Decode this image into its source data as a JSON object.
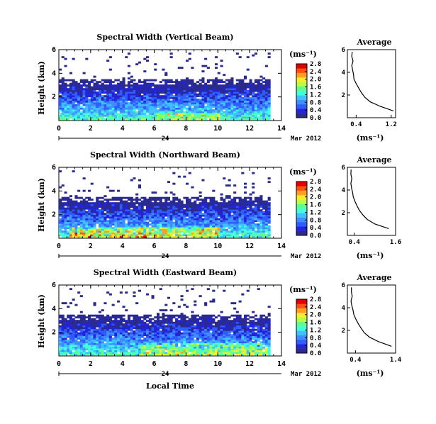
{
  "figure": {
    "local_time_label": "Local Time"
  },
  "colors": {
    "scale": [
      "#2b2b8c",
      "#2323d8",
      "#2f5cff",
      "#3f8dff",
      "#40c0ff",
      "#40ffe0",
      "#60ff8c",
      "#b8ff40",
      "#ffe830",
      "#ffa020",
      "#ff5010",
      "#e00000"
    ]
  },
  "chart_data": [
    {
      "type": "heatmap",
      "title": "Spectral Width (Vertical Beam)",
      "ylabel": "Height (km)",
      "xlim": [
        0,
        14
      ],
      "ylim": [
        0,
        6
      ],
      "xticks": [
        "0",
        "2",
        "4",
        "6",
        "8",
        "10",
        "12",
        "14"
      ],
      "yticks": [
        "2",
        "4",
        "6"
      ],
      "date_day": "24",
      "date_month": "Mar 2012",
      "colorbar": {
        "unit": "(ms⁻¹)",
        "ticks": [
          "0.0",
          "0.4",
          "0.8",
          "1.2",
          "1.6",
          "2.0",
          "2.4",
          "2.8"
        ]
      },
      "average": {
        "title": "Average",
        "xlabel": "(ms⁻¹)",
        "xlim": [
          0.2,
          1.3
        ],
        "xticks": [
          "0.4",
          "1.2"
        ],
        "yticks": [
          "2",
          "4",
          "6"
        ],
        "height": [
          0.6,
          1.0,
          1.4,
          1.8,
          2.2,
          2.6,
          3.0,
          3.4,
          3.8,
          4.2,
          4.6,
          5.0,
          5.4,
          5.8
        ],
        "value": [
          1.25,
          0.95,
          0.72,
          0.6,
          0.52,
          0.46,
          0.4,
          0.35,
          0.34,
          0.32,
          0.3,
          0.33,
          0.3,
          0.31
        ]
      }
    },
    {
      "type": "heatmap",
      "title": "Spectral Width (Northward Beam)",
      "ylabel": "Height (km)",
      "xlim": [
        0,
        14
      ],
      "ylim": [
        0,
        6
      ],
      "xticks": [
        "0",
        "2",
        "4",
        "6",
        "8",
        "10",
        "12",
        "14"
      ],
      "yticks": [
        "2",
        "4",
        "6"
      ],
      "date_day": "24",
      "date_month": "Mar 2012",
      "colorbar": {
        "unit": "(ms⁻¹)",
        "ticks": [
          "0.0",
          "0.4",
          "0.8",
          "1.2",
          "1.6",
          "2.0",
          "2.4",
          "2.8"
        ]
      },
      "average": {
        "title": "Average",
        "xlabel": "(ms⁻¹)",
        "xlim": [
          0.2,
          1.6
        ],
        "xticks": [
          "0.4",
          "1.6"
        ],
        "yticks": [
          "2",
          "4",
          "6"
        ],
        "height": [
          0.6,
          1.0,
          1.4,
          1.8,
          2.2,
          2.6,
          3.0,
          3.4,
          3.8,
          4.2,
          4.6,
          5.0,
          5.4,
          5.8
        ],
        "value": [
          1.4,
          1.0,
          0.78,
          0.65,
          0.55,
          0.48,
          0.42,
          0.37,
          0.35,
          0.32,
          0.3,
          0.33,
          0.3,
          0.31
        ]
      }
    },
    {
      "type": "heatmap",
      "title": "Spectral Width (Eastward Beam)",
      "ylabel": "Height (km)",
      "xlim": [
        0,
        14
      ],
      "ylim": [
        0,
        6
      ],
      "xticks": [
        "0",
        "2",
        "4",
        "6",
        "8",
        "10",
        "12",
        "14"
      ],
      "yticks": [
        "2",
        "4",
        "6"
      ],
      "date_day": "24",
      "date_month": "Mar 2012",
      "colorbar": {
        "unit": "(ms⁻¹)",
        "ticks": [
          "0.0",
          "0.4",
          "0.8",
          "1.2",
          "1.6",
          "2.0",
          "2.4",
          "2.8"
        ]
      },
      "average": {
        "title": "Average",
        "xlabel": "(ms⁻¹)",
        "xlim": [
          0.2,
          1.4
        ],
        "xticks": [
          "0.4",
          "1.4"
        ],
        "yticks": [
          "2",
          "4",
          "6"
        ],
        "height": [
          0.6,
          1.0,
          1.4,
          1.8,
          2.2,
          2.6,
          3.0,
          3.4,
          3.8,
          4.2,
          4.6,
          5.0,
          5.4,
          5.8
        ],
        "value": [
          1.3,
          0.98,
          0.75,
          0.62,
          0.54,
          0.47,
          0.41,
          0.36,
          0.34,
          0.31,
          0.29,
          0.32,
          0.3,
          0.3
        ]
      }
    }
  ]
}
